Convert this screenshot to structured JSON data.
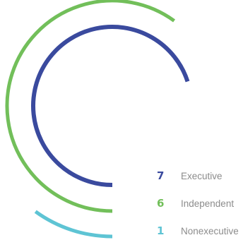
{
  "chart_data": {
    "type": "radial-bar",
    "max_value": 10,
    "series": [
      {
        "name": "Executive",
        "value": 7,
        "color": "#3a4a9e"
      },
      {
        "name": "Independent",
        "value": 6,
        "color": "#72bf5a"
      },
      {
        "name": "Nonexecutive",
        "value": 1,
        "color": "#5ec4d4"
      }
    ],
    "legend_position": "bottom-right"
  }
}
